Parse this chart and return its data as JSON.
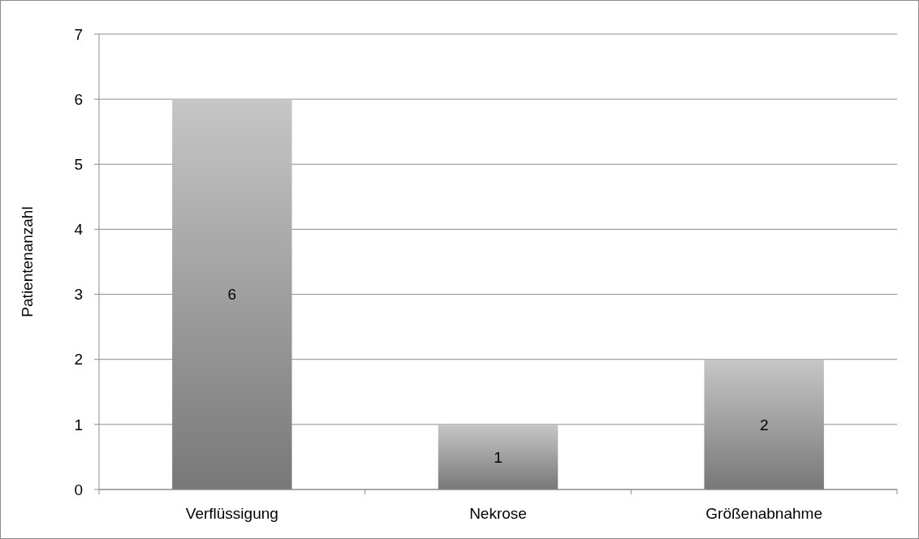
{
  "chart_data": {
    "type": "bar",
    "ylabel": "Patientenanzahl",
    "categories": [
      "Verflüssigung",
      "Nekrose",
      "Größenabnahme"
    ],
    "values": [
      6,
      1,
      2
    ],
    "color": "#a0a0a0",
    "ylim": [
      0,
      7
    ],
    "yticks": [
      0,
      1,
      2,
      3,
      4,
      5,
      6,
      7
    ],
    "grid": "y",
    "data_labels": true
  }
}
